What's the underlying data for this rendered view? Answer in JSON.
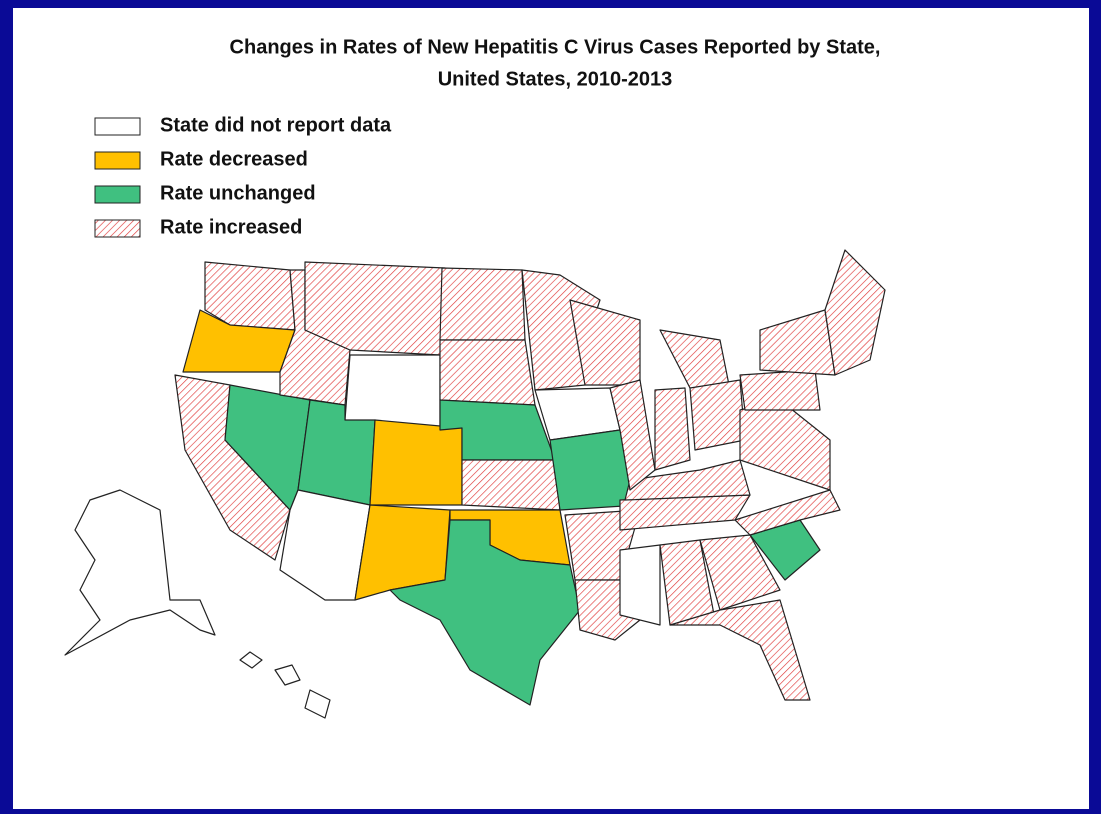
{
  "title": [
    "Changes in Rates of New Hepatitis C Virus Cases Reported by State,",
    "United States, 2010-2013"
  ],
  "legend": [
    {
      "label": "State did not report data",
      "color": "#ffffff"
    },
    {
      "label": "Rate decreased",
      "color": "#ffc000"
    },
    {
      "label": "Rate unchanged",
      "color": "#40c080"
    },
    {
      "label": "Rate increased",
      "color": "#e03a3a",
      "pattern": "hatch"
    }
  ]
}
